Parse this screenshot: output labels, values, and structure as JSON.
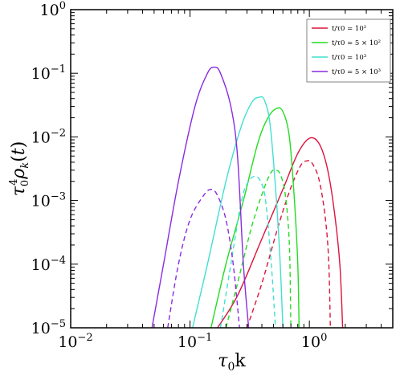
{
  "chart_data": {
    "type": "line",
    "xlabel": "τ0k",
    "ylabel": "τ0^4 ρk(t)",
    "x_scale": "log",
    "y_scale": "log",
    "xlim": [
      0.01,
      5.0
    ],
    "ylim": [
      1e-05,
      1.0
    ],
    "grid": false,
    "legend_placement": "top-right",
    "x_ticks": [
      {
        "value": 0.01,
        "base": "10",
        "exp": "−2"
      },
      {
        "value": 0.1,
        "base": "10",
        "exp": "−1"
      },
      {
        "value": 1.0,
        "base": "10",
        "exp": "0"
      }
    ],
    "y_ticks": [
      {
        "value": 1e-05,
        "base": "10",
        "exp": "−5"
      },
      {
        "value": 0.0001,
        "base": "10",
        "exp": "−4"
      },
      {
        "value": 0.001,
        "base": "10",
        "exp": "−3"
      },
      {
        "value": 0.01,
        "base": "10",
        "exp": "−2"
      },
      {
        "value": 0.1,
        "base": "10",
        "exp": "−1"
      },
      {
        "value": 1.0,
        "base": "10",
        "exp": "0"
      }
    ],
    "series": [
      {
        "name": "t/τ0 = 10²",
        "color": "#dc143c",
        "solid": [
          [
            0.17,
            1e-05
          ],
          [
            0.25,
            3.2e-05
          ],
          [
            0.4,
            0.00025
          ],
          [
            0.6,
            0.0015
          ],
          [
            0.8,
            0.0055
          ],
          [
            1.0,
            0.0095
          ],
          [
            1.2,
            0.008
          ],
          [
            1.4,
            0.0035
          ],
          [
            1.6,
            0.0008
          ],
          [
            1.8,
            0.0001
          ],
          [
            1.9,
            1e-05
          ]
        ],
        "dashed": [
          [
            0.3,
            1e-05
          ],
          [
            0.4,
            5e-05
          ],
          [
            0.55,
            0.0004
          ],
          [
            0.7,
            0.0016
          ],
          [
            0.85,
            0.0036
          ],
          [
            0.95,
            0.0042
          ],
          [
            1.05,
            0.0039
          ],
          [
            1.2,
            0.0022
          ],
          [
            1.35,
            0.0006
          ],
          [
            1.45,
            0.00012
          ],
          [
            1.5,
            1e-05
          ]
        ]
      },
      {
        "name": "t/τ0 = 5 × 10²",
        "color": "#22dd22",
        "solid": [
          [
            0.15,
            1e-05
          ],
          [
            0.2,
            0.0001
          ],
          [
            0.28,
            0.001
          ],
          [
            0.37,
            0.008
          ],
          [
            0.45,
            0.02
          ],
          [
            0.53,
            0.028
          ],
          [
            0.6,
            0.025
          ],
          [
            0.68,
            0.01
          ],
          [
            0.75,
            0.001
          ],
          [
            0.8,
            0.0001
          ],
          [
            0.82,
            1e-05
          ]
        ],
        "dashed": [
          [
            0.2,
            1e-05
          ],
          [
            0.25,
            5e-05
          ],
          [
            0.33,
            0.0004
          ],
          [
            0.42,
            0.0016
          ],
          [
            0.48,
            0.0028
          ],
          [
            0.52,
            0.003
          ],
          [
            0.57,
            0.0026
          ],
          [
            0.63,
            0.0012
          ],
          [
            0.68,
            0.0002
          ],
          [
            0.7,
            1e-05
          ]
        ]
      },
      {
        "name": "t/τ0 = 10³",
        "color": "#40e0d0",
        "solid": [
          [
            0.105,
            1e-05
          ],
          [
            0.14,
            0.0001
          ],
          [
            0.2,
            0.002
          ],
          [
            0.27,
            0.015
          ],
          [
            0.33,
            0.035
          ],
          [
            0.38,
            0.042
          ],
          [
            0.42,
            0.038
          ],
          [
            0.47,
            0.015
          ],
          [
            0.53,
            0.001
          ],
          [
            0.57,
            0.0001
          ],
          [
            0.6,
            1e-05
          ]
        ],
        "dashed": [
          [
            0.18,
            1e-05
          ],
          [
            0.22,
            0.0001
          ],
          [
            0.27,
            0.001
          ],
          [
            0.31,
            0.002
          ],
          [
            0.35,
            0.0024
          ],
          [
            0.39,
            0.002
          ],
          [
            0.43,
            0.001
          ],
          [
            0.48,
            0.0001
          ],
          [
            0.52,
            1e-05
          ]
        ]
      },
      {
        "name": "t/τ0 = 5 × 10³",
        "color": "#8a2be2",
        "solid": [
          [
            0.048,
            1e-05
          ],
          [
            0.06,
            0.0001
          ],
          [
            0.08,
            0.002
          ],
          [
            0.11,
            0.03
          ],
          [
            0.14,
            0.1
          ],
          [
            0.16,
            0.125
          ],
          [
            0.18,
            0.1
          ],
          [
            0.22,
            0.03
          ],
          [
            0.25,
            0.005
          ],
          [
            0.28,
            0.0001
          ],
          [
            0.31,
            1e-05
          ]
        ],
        "dashed": [
          [
            0.065,
            1e-05
          ],
          [
            0.08,
            0.0001
          ],
          [
            0.1,
            0.0005
          ],
          [
            0.13,
            0.0012
          ],
          [
            0.15,
            0.0015
          ],
          [
            0.17,
            0.0012
          ],
          [
            0.2,
            0.0005
          ],
          [
            0.23,
            0.0001
          ],
          [
            0.26,
            1e-05
          ]
        ]
      }
    ]
  }
}
